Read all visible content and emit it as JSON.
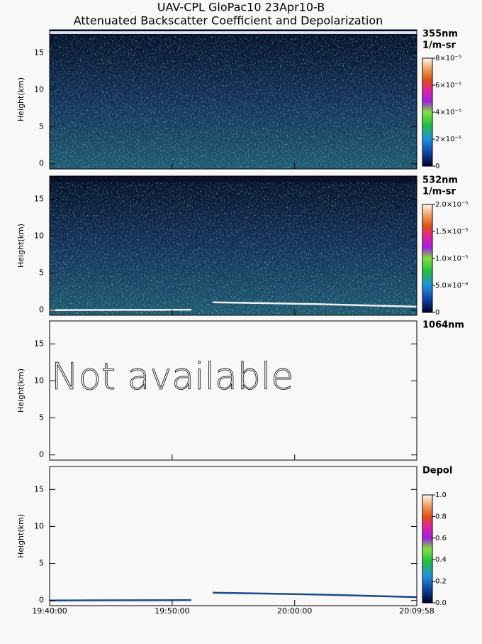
{
  "chart_data": {
    "type": "heatmap",
    "title": "UAV-CPL GloPac10 23Apr10-B",
    "subtitle": "Attenuated Backscatter Coefficient and Depolarization",
    "xlim": [
      "19:40:00",
      "20:09:58"
    ],
    "xticks": [
      "19:40:00",
      "19:50:00",
      "20:00:00",
      "20:09:58"
    ],
    "panels": [
      {
        "label": "355nm",
        "units": "1/m-sr",
        "ylabel": "Height(km)",
        "ylim": [
          -0.7,
          18.1
        ],
        "yticks": [
          0,
          5,
          10,
          15
        ],
        "clim": [
          0,
          8e-05
        ],
        "cticks": [
          0,
          {
            "value": 2e-05,
            "label": "2×10⁻⁵"
          },
          {
            "value": 4e-05,
            "label": "4×10⁻⁵"
          },
          {
            "value": 6e-05,
            "label": "6×10⁻⁵"
          },
          {
            "value": 8e-05,
            "label": "8×10⁻⁵"
          }
        ]
      },
      {
        "label": "532nm",
        "units": "1/m-sr",
        "ylabel": "Height(km)",
        "ylim": [
          -0.7,
          18.1
        ],
        "yticks": [
          0,
          5,
          10,
          15
        ],
        "clim": [
          0,
          2e-05
        ],
        "cticks": [
          0,
          {
            "value": 5e-06,
            "label": "5.0×10⁻⁶"
          },
          {
            "value": 1e-05,
            "label": "1.0×10⁻⁵"
          },
          {
            "value": 1.5e-05,
            "label": "1.5×10⁻⁵"
          },
          {
            "value": 2e-05,
            "label": "2.0×10⁻⁵"
          }
        ]
      },
      {
        "label": "1064nm",
        "ylabel": "Height(km)",
        "ylim": [
          -0.7,
          18.1
        ],
        "yticks": [
          0,
          5,
          10,
          15
        ],
        "annotation": "Not available"
      },
      {
        "label": "Depol",
        "ylabel": "Height(km)",
        "ylim": [
          -0.7,
          18.1
        ],
        "yticks": [
          0,
          5,
          10,
          15
        ],
        "clim": [
          0,
          1
        ],
        "cticks": [
          {
            "value": 0,
            "label": "0.0"
          },
          {
            "value": 0.2,
            "label": "0.2"
          },
          {
            "value": 0.4,
            "label": "0.4"
          },
          {
            "value": 0.6,
            "label": "0.6"
          },
          {
            "value": 0.8,
            "label": "0.8"
          },
          {
            "value": 1,
            "label": "1.0"
          }
        ]
      }
    ]
  }
}
